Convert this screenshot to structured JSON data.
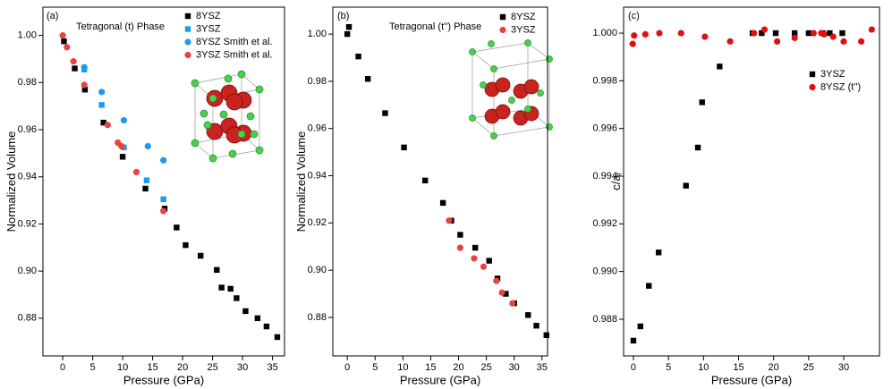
{
  "chart_data": [
    {
      "type": "scatter",
      "annotation": "(a)",
      "subtitle": "Tetragonal (t) Phase",
      "xlabel": "Pressure (GPa)",
      "ylabel": "Normalized Volume",
      "xlim": [
        -3.3,
        37
      ],
      "ylim": [
        0.864,
        1.012
      ],
      "xticks": [
        0,
        5,
        10,
        15,
        20,
        25,
        30,
        35
      ],
      "yticks": [
        0.88,
        {
          "value": 0.9,
          "label": "0.90"
        },
        0.92,
        0.94,
        0.96,
        0.98,
        {
          "value": 1,
          "label": "1.00"
        }
      ],
      "series": [
        {
          "name": "8YSZ",
          "color": "#000000",
          "marker": "square",
          "x": [
            0.2,
            2,
            3.7,
            6.8,
            10,
            13.8,
            17,
            19,
            20.5,
            23,
            25.7,
            26.5,
            28,
            29,
            30.5,
            32.5,
            34,
            35.8
          ],
          "values": [
            0.9975,
            0.986,
            0.977,
            0.963,
            0.9485,
            0.935,
            0.9265,
            0.9185,
            0.911,
            0.9065,
            0.9005,
            0.893,
            0.8925,
            0.8885,
            0.883,
            0.88,
            0.8765,
            0.872
          ]
        },
        {
          "name": "3YSZ",
          "color": "#1e9be8",
          "marker": "square",
          "x": [
            3.6,
            6.5,
            10.2,
            14,
            16.8
          ],
          "values": [
            0.9855,
            0.9705,
            0.9525,
            0.9385,
            0.9305
          ]
        },
        {
          "name": "8YSZ Smith et al.",
          "color": "#1e9be8",
          "marker": "circle",
          "x": [
            3.6,
            6.5,
            10.2,
            14.2,
            16.8
          ],
          "values": [
            0.9865,
            0.976,
            0.964,
            0.953,
            0.947
          ]
        },
        {
          "name": "3YSZ Smith et al.",
          "color": "#e8413f",
          "marker": "circle",
          "x": [
            0,
            0.7,
            1.8,
            3.6,
            7.5,
            9.2,
            9.8,
            12.3,
            16.8
          ],
          "values": [
            1.0,
            0.995,
            0.989,
            0.979,
            0.962,
            0.9545,
            0.953,
            0.942,
            0.9255
          ]
        }
      ]
    },
    {
      "type": "scatter",
      "annotation": "(b)",
      "subtitle": "Tetragonal (t'') Phase",
      "xlabel": "Pressure (GPa)",
      "ylabel": "Normalized Volume",
      "xlim": [
        -2.6,
        36
      ],
      "ylim": [
        0.8637,
        1.0114
      ],
      "xticks": [
        0,
        5,
        10,
        15,
        20,
        25,
        30,
        35
      ],
      "yticks": [
        0.88,
        {
          "value": 0.9,
          "label": "0.90"
        },
        0.92,
        0.94,
        0.96,
        0.98,
        {
          "value": 1,
          "label": "1.00"
        }
      ],
      "series": [
        {
          "name": "8YSZ",
          "color": "#000000",
          "marker": "square",
          "x": [
            0,
            0.3,
            2,
            3.7,
            6.8,
            10.2,
            14,
            17.2,
            18.7,
            20.3,
            23,
            25.5,
            27,
            28.5,
            30,
            32.5,
            34,
            35.8
          ],
          "values": [
            1.0,
            1.003,
            0.9905,
            0.981,
            0.9665,
            0.952,
            0.938,
            0.9285,
            0.921,
            0.915,
            0.9095,
            0.904,
            0.8965,
            0.89,
            0.886,
            0.881,
            0.8765,
            0.8725
          ]
        },
        {
          "name": "3YSZ",
          "color": "#e8413f",
          "marker": "circle",
          "x": [
            18.3,
            20.3,
            22.8,
            24.5,
            26.8,
            27.8,
            29.7
          ],
          "values": [
            0.921,
            0.9095,
            0.905,
            0.9015,
            0.8955,
            0.8905,
            0.886
          ]
        }
      ]
    },
    {
      "type": "scatter",
      "annotation": "(c)",
      "xlabel": "Pressure (GPa)",
      "ylabel": "c/a",
      "ylabel_sub": "f",
      "xlim": [
        -1.4,
        35.1
      ],
      "ylim": [
        0.98646,
        1.00109
      ],
      "xticks": [
        0,
        5,
        10,
        15,
        20,
        25,
        30
      ],
      "yticks": [
        0.988,
        {
          "value": 0.99,
          "label": "0.990"
        },
        0.992,
        0.994,
        0.996,
        0.998,
        {
          "value": 1,
          "label": "1.000"
        }
      ],
      "series": [
        {
          "name": "3YSZ",
          "color": "#000000",
          "marker": "square",
          "x": [
            0,
            1,
            2.2,
            3.6,
            7.5,
            9.2,
            9.8,
            12.3,
            17,
            18.3,
            20.3,
            23,
            25,
            27,
            28,
            29.8
          ],
          "values": [
            0.9871,
            0.9877,
            0.9894,
            0.9908,
            0.9936,
            0.9952,
            0.9971,
            0.9986,
            1.0,
            1.0,
            1.0,
            1.0,
            1.0,
            1.0,
            1.0,
            1.0
          ]
        },
        {
          "name": "8YSZ (t'')",
          "color": "#e01010",
          "marker": "circle",
          "x": [
            -0.1,
            0.1,
            1.7,
            3.7,
            6.8,
            10.2,
            13.8,
            17.2,
            18.7,
            20.5,
            23,
            25.7,
            26.8,
            27.2,
            28.5,
            30,
            32.5,
            34
          ],
          "values": [
            0.99955,
            0.9999,
            0.99995,
            1.0,
            1.0,
            0.99985,
            0.99965,
            1.0,
            1.00015,
            0.99965,
            0.9998,
            1.0,
            1.0,
            0.99995,
            0.99985,
            0.99965,
            0.99965,
            1.00015
          ]
        }
      ]
    }
  ]
}
